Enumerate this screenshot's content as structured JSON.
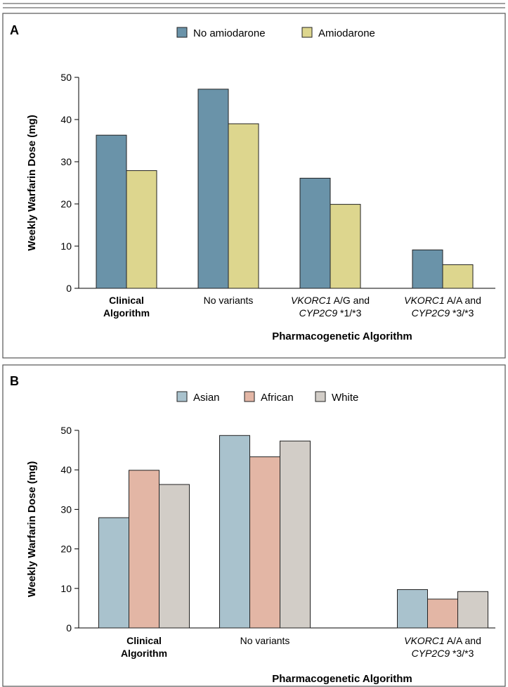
{
  "chart_data": [
    {
      "panel_label": "A",
      "type": "bar",
      "title": "",
      "ylabel": "Weekly Warfarin Dose (mg)",
      "xlabel": "Pharmacogenetic Algorithm",
      "ylim": [
        0,
        50
      ],
      "yticks": [
        0,
        10,
        20,
        30,
        40,
        50
      ],
      "legend": "top-center",
      "categories": [
        {
          "lines": [
            {
              "parts": [
                {
                  "text": "Clinical"
                }
              ]
            },
            {
              "parts": [
                {
                  "text": "Algorithm"
                }
              ]
            }
          ],
          "bold": true
        },
        {
          "lines": [
            {
              "parts": [
                {
                  "text": "No variants"
                }
              ]
            }
          ],
          "bold": false
        },
        {
          "lines": [
            {
              "parts": [
                {
                  "text": "VKORC1",
                  "italic": true
                },
                {
                  "text": " A/G and"
                }
              ]
            },
            {
              "parts": [
                {
                  "text": "CYP2C9",
                  "italic": true
                },
                {
                  "text": " *1/*3"
                }
              ]
            }
          ],
          "bold": false
        },
        {
          "lines": [
            {
              "parts": [
                {
                  "text": "VKORC1",
                  "italic": true
                },
                {
                  "text": " A/A and"
                }
              ]
            },
            {
              "parts": [
                {
                  "text": "CYP2C9",
                  "italic": true
                },
                {
                  "text": " *3/*3"
                }
              ]
            }
          ],
          "bold": false
        }
      ],
      "series": [
        {
          "name": "No amiodarone",
          "color": "#6a93a9",
          "values": [
            36.3,
            47.2,
            26.1,
            9.1
          ]
        },
        {
          "name": "Amiodarone",
          "color": "#ddd68e",
          "values": [
            27.9,
            39.0,
            19.9,
            5.6
          ]
        }
      ]
    },
    {
      "panel_label": "B",
      "type": "bar",
      "title": "",
      "ylabel": "Weekly Warfarin Dose (mg)",
      "xlabel": "Pharmacogenetic Algorithm",
      "ylim": [
        0,
        50
      ],
      "yticks": [
        0,
        10,
        20,
        30,
        40,
        50
      ],
      "legend": "top-center",
      "categories": [
        {
          "lines": [
            {
              "parts": [
                {
                  "text": "Clinical"
                }
              ]
            },
            {
              "parts": [
                {
                  "text": "Algorithm"
                }
              ]
            }
          ],
          "bold": true
        },
        {
          "lines": [
            {
              "parts": [
                {
                  "text": "No variants"
                }
              ]
            }
          ],
          "bold": false
        },
        {
          "lines": [
            {
              "parts": [
                {
                  "text": "VKORC1",
                  "italic": true
                },
                {
                  "text": " A/A and"
                }
              ]
            },
            {
              "parts": [
                {
                  "text": "CYP2C9",
                  "italic": true
                },
                {
                  "text": " *3/*3"
                }
              ]
            }
          ],
          "bold": false
        }
      ],
      "series": [
        {
          "name": "Asian",
          "color": "#a9c2cd",
          "values": [
            27.9,
            48.7,
            9.7
          ]
        },
        {
          "name": "African",
          "color": "#e3b6a5",
          "values": [
            39.9,
            43.3,
            7.3
          ]
        },
        {
          "name": "White",
          "color": "#d2cdc7",
          "values": [
            36.3,
            47.3,
            9.2
          ]
        }
      ]
    }
  ],
  "style": {
    "frame_color": "#555555",
    "bar_stroke": "#222222"
  }
}
